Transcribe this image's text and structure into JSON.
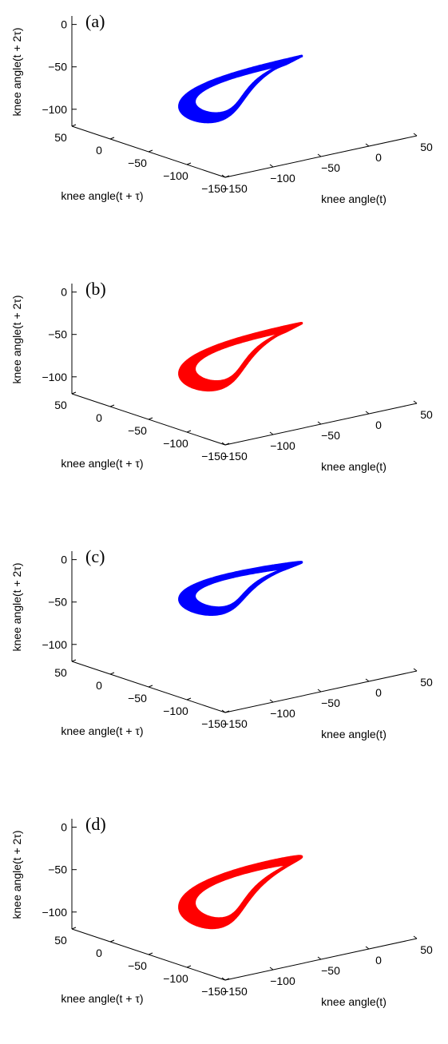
{
  "chart_data": [
    {
      "type": "line",
      "panel_label": "(a)",
      "color": "#0000ff",
      "xlabel": "knee angle(t)",
      "ylabel": "knee angle(t + τ)",
      "zlabel": "knee angle(t + 2τ)",
      "x_ticks": [
        "−150",
        "−100",
        "−50",
        "0",
        "50"
      ],
      "y_ticks": [
        "−150",
        "−100",
        "−50",
        "0",
        "50"
      ],
      "z_ticks": [
        "−100",
        "−50",
        "0"
      ],
      "xlim": [
        -150,
        50
      ],
      "ylim": [
        -150,
        50
      ],
      "zlim": [
        -120,
        10
      ],
      "loop": {
        "lobe_a": [
          -20,
          -70,
          -40
        ],
        "lobe_b": [
          -80,
          -20,
          -100
        ],
        "z_center": -70,
        "z_amp": 30
      }
    },
    {
      "type": "line",
      "panel_label": "(b)",
      "color": "#ff0000",
      "xlabel": "knee angle(t)",
      "ylabel": "knee angle(t + τ)",
      "zlabel": "knee angle(t + 2τ)",
      "x_ticks": [
        "−150",
        "−100",
        "−50",
        "0",
        "50"
      ],
      "y_ticks": [
        "−150",
        "−100",
        "−50",
        "0",
        "50"
      ],
      "z_ticks": [
        "−100",
        "−50",
        "0"
      ],
      "xlim": [
        -150,
        50
      ],
      "ylim": [
        -150,
        50
      ],
      "zlim": [
        -120,
        10
      ],
      "loop": {
        "lobe_a": [
          -20,
          -70,
          -40
        ],
        "lobe_b": [
          -80,
          -20,
          -100
        ],
        "z_center": -70,
        "z_amp": 32
      }
    },
    {
      "type": "line",
      "panel_label": "(c)",
      "color": "#0000ff",
      "xlabel": "knee angle(t)",
      "ylabel": "knee angle(t + τ)",
      "zlabel": "knee angle(t + 2τ)",
      "x_ticks": [
        "−150",
        "−100",
        "−50",
        "0",
        "50"
      ],
      "y_ticks": [
        "−150",
        "−100",
        "−50",
        "0",
        "50"
      ],
      "z_ticks": [
        "−100",
        "−50",
        "0"
      ],
      "xlim": [
        -150,
        50
      ],
      "ylim": [
        -150,
        50
      ],
      "zlim": [
        -120,
        10
      ],
      "loop": {
        "lobe_a": [
          -20,
          -70,
          -5
        ],
        "lobe_b": [
          -80,
          -20,
          -50
        ],
        "z_center": -20,
        "z_amp": 28
      }
    },
    {
      "type": "line",
      "panel_label": "(d)",
      "color": "#ff0000",
      "xlabel": "knee angle(t)",
      "ylabel": "knee angle(t + τ)",
      "zlabel": "knee angle(t + 2τ)",
      "x_ticks": [
        "−150",
        "−100",
        "−50",
        "0",
        "50"
      ],
      "y_ticks": [
        "−150",
        "−100",
        "−50",
        "0",
        "50"
      ],
      "z_ticks": [
        "−100",
        "−50",
        "0"
      ],
      "xlim": [
        -150,
        50
      ],
      "ylim": [
        -150,
        50
      ],
      "zlim": [
        -120,
        10
      ],
      "loop": {
        "lobe_a": [
          -20,
          -70,
          -40
        ],
        "lobe_b": [
          -80,
          -20,
          -100
        ],
        "z_center": -70,
        "z_amp": 40
      }
    }
  ]
}
